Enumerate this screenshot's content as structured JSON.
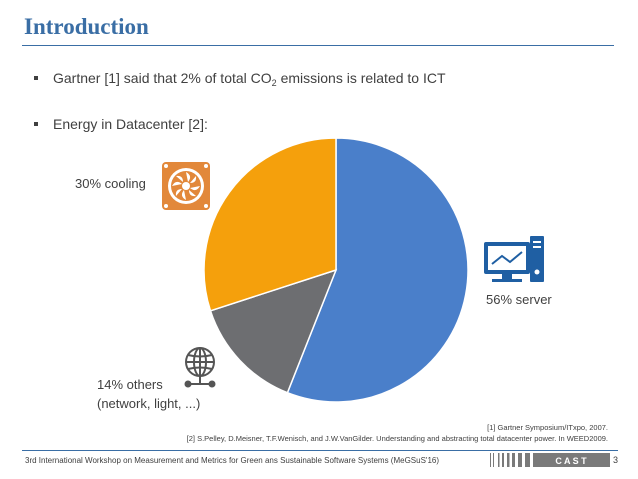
{
  "slide": {
    "title": "Introduction",
    "bullets": [
      {
        "pre": "Gartner [1] said that 2% of total CO",
        "sub": "2",
        "post": " emissions is related to ICT"
      },
      {
        "text": "Energy in Datacenter [2]:"
      }
    ],
    "references": [
      "[1] Gartner Symposium/ITxpo, 2007.",
      "[2] S.Pelley, D.Meisner, T.F.Wenisch, and J.W.VanGilder. Understanding and abstracting total datacenter power. In WEED2009."
    ],
    "footer": "3rd International Workshop on Measurement and Metrics for Green ans Sustainable Software Systems (MeGSuS'16)",
    "page_number": "3",
    "logo_text": "C A S T"
  },
  "chart_data": {
    "type": "pie",
    "slices": [
      {
        "label": "56% server",
        "value": 56,
        "color": "#4a7fca",
        "icon": "computer-monitor-icon"
      },
      {
        "label": "14% others",
        "sublabel": "(network, light, ...)",
        "value": 14,
        "color": "#6d6e71",
        "icon": "globe-network-icon"
      },
      {
        "label": "30% cooling",
        "value": 30,
        "color": "#f5a00c",
        "icon": "cooling-fan-icon"
      }
    ],
    "start_angle_deg": 0,
    "direction": "clockwise"
  },
  "colors": {
    "title": "#3a6ea5",
    "text": "#404040",
    "fan_icon": "#e2883a",
    "server_icon": "#1f5fa3",
    "globe_icon": "#555555"
  }
}
